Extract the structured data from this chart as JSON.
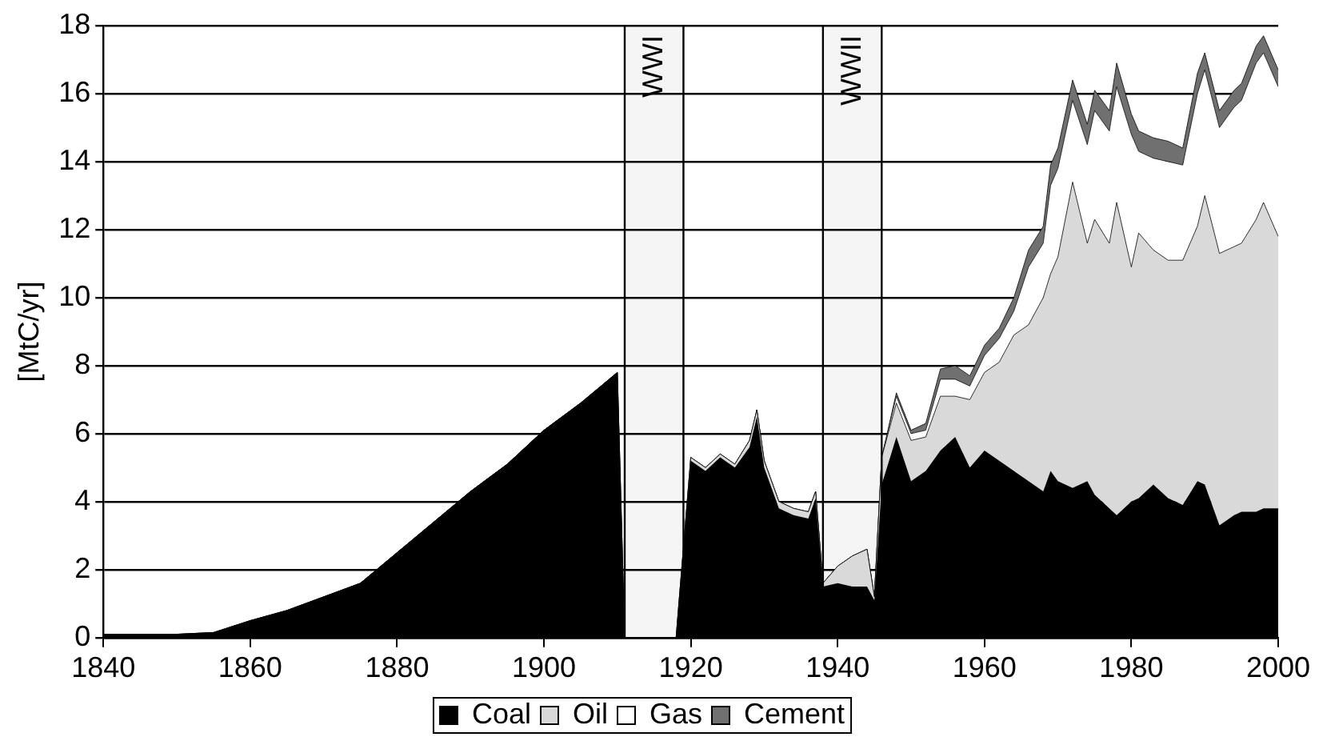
{
  "chart_data": {
    "type": "area",
    "stacked": true,
    "ylabel": "[MtC/yr]",
    "x": [
      1840,
      1850,
      1855,
      1860,
      1865,
      1870,
      1875,
      1880,
      1885,
      1890,
      1895,
      1900,
      1905,
      1910,
      1911,
      1918,
      1920,
      1922,
      1924,
      1926,
      1928,
      1929,
      1930,
      1932,
      1934,
      1936,
      1937,
      1938,
      1940,
      1942,
      1943,
      1944,
      1945,
      1946,
      1948,
      1950,
      1952,
      1954,
      1956,
      1958,
      1960,
      1962,
      1964,
      1966,
      1968,
      1969,
      1970,
      1972,
      1974,
      1975,
      1977,
      1978,
      1980,
      1981,
      1983,
      1985,
      1987,
      1989,
      1990,
      1992,
      1994,
      1995,
      1997,
      1998,
      2000
    ],
    "series": [
      {
        "name": "Coal",
        "color": "#000000",
        "values": [
          0.1,
          0.1,
          0.15,
          0.5,
          0.8,
          1.2,
          1.6,
          2.5,
          3.4,
          4.3,
          5.1,
          6.1,
          6.9,
          7.8,
          0,
          0,
          5.2,
          4.9,
          5.3,
          5.0,
          5.6,
          6.5,
          5.0,
          3.8,
          3.6,
          3.5,
          4.1,
          1.5,
          1.6,
          1.5,
          1.5,
          1.5,
          1.1,
          4.5,
          5.9,
          4.6,
          4.9,
          5.5,
          5.9,
          5.0,
          5.5,
          5.2,
          4.9,
          4.6,
          4.3,
          4.9,
          4.6,
          4.4,
          4.6,
          4.2,
          3.8,
          3.6,
          4.0,
          4.1,
          4.5,
          4.1,
          3.9,
          4.6,
          4.5,
          3.3,
          3.6,
          3.7,
          3.7,
          3.8,
          3.8
        ]
      },
      {
        "name": "Oil",
        "color": "#d9d9d9",
        "values": [
          0,
          0,
          0,
          0,
          0,
          0,
          0,
          0,
          0,
          0,
          0,
          0,
          0,
          0,
          0,
          0,
          0.1,
          0.1,
          0.1,
          0.1,
          0.2,
          0.2,
          0.2,
          0.2,
          0.2,
          0.2,
          0.2,
          0.1,
          0.5,
          0.9,
          1.0,
          1.1,
          0.1,
          0.8,
          1.0,
          1.2,
          1.0,
          1.6,
          1.2,
          2.0,
          2.3,
          2.9,
          4.0,
          4.6,
          5.7,
          5.8,
          6.6,
          9.0,
          7.0,
          8.1,
          7.8,
          9.2,
          6.9,
          7.8,
          6.9,
          7.0,
          7.2,
          7.5,
          8.5,
          8.0,
          7.9,
          7.9,
          8.6,
          9.0,
          8.0
        ]
      },
      {
        "name": "Gas",
        "color": "#ffffff",
        "values": [
          0,
          0,
          0,
          0,
          0,
          0,
          0,
          0,
          0,
          0,
          0,
          0,
          0,
          0,
          0,
          0,
          0,
          0,
          0,
          0,
          0,
          0,
          0,
          0,
          0,
          0,
          0,
          0,
          0,
          0,
          0,
          0,
          0,
          0,
          0.2,
          0.2,
          0.2,
          0.5,
          0.5,
          0.4,
          0.5,
          0.7,
          0.7,
          1.7,
          1.6,
          2.6,
          2.6,
          2.4,
          2.9,
          3.2,
          3.3,
          3.4,
          3.9,
          2.4,
          2.7,
          2.9,
          2.8,
          3.9,
          3.7,
          3.7,
          4.1,
          4.2,
          4.6,
          4.4,
          4.4
        ]
      },
      {
        "name": "Cement",
        "color": "#707070",
        "values": [
          0,
          0,
          0,
          0,
          0,
          0,
          0,
          0,
          0,
          0,
          0,
          0,
          0,
          0,
          0,
          0,
          0,
          0,
          0,
          0,
          0,
          0,
          0,
          0,
          0,
          0,
          0,
          0,
          0,
          0,
          0,
          0,
          0,
          0,
          0.1,
          0.1,
          0.2,
          0.3,
          0.4,
          0.3,
          0.3,
          0.3,
          0.4,
          0.5,
          0.5,
          0.6,
          0.6,
          0.6,
          0.6,
          0.6,
          0.6,
          0.7,
          0.6,
          0.6,
          0.6,
          0.6,
          0.5,
          0.6,
          0.5,
          0.5,
          0.5,
          0.5,
          0.5,
          0.5,
          0.5
        ]
      }
    ],
    "xlim": [
      1840,
      2000
    ],
    "xticks": [
      1840,
      1860,
      1880,
      1900,
      1920,
      1940,
      1960,
      1980,
      2000
    ],
    "ylim": [
      0,
      18
    ],
    "yticks": [
      0,
      2,
      4,
      6,
      8,
      10,
      12,
      14,
      16,
      18
    ],
    "bands": [
      {
        "axis": "x",
        "from": 1911,
        "to": 1919,
        "label": "WWI",
        "color": "#f5f5f5"
      },
      {
        "axis": "x",
        "from": 1938,
        "to": 1946,
        "label": "WWII",
        "color": "#f5f5f5"
      }
    ],
    "grid": "y",
    "legend": "bottom"
  }
}
